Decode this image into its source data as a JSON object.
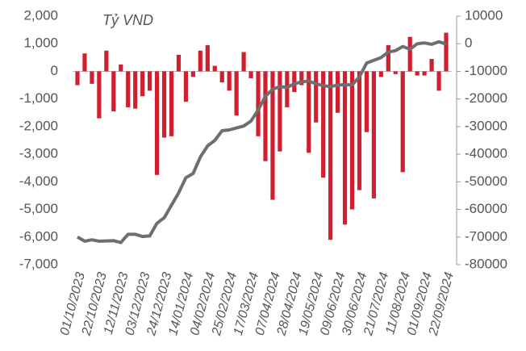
{
  "chart_data": {
    "type": "bar_line",
    "annotation": "Tỷ VND",
    "categories": [
      "01/10/2023",
      null,
      null,
      "22/10/2023",
      null,
      null,
      "12/11/2023",
      null,
      null,
      "03/12/2023",
      null,
      null,
      "24/12/2023",
      null,
      null,
      "14/01/2024",
      null,
      null,
      "04/02/2024",
      null,
      null,
      "25/02/2024",
      null,
      null,
      "17/03/2024",
      null,
      null,
      "07/04/2024",
      null,
      null,
      "28/04/2024",
      null,
      null,
      "19/05/2024",
      null,
      null,
      "09/06/2024",
      null,
      null,
      "30/06/2024",
      null,
      null,
      "21/07/2024",
      null,
      null,
      "11/08/2024",
      null,
      null,
      "01/09/2024",
      null,
      null,
      "22/09/2024"
    ],
    "series": [
      {
        "color": "#d01f2e",
        "axis": "y",
        "values": [
          -500,
          650,
          -450,
          -1700,
          750,
          -1450,
          250,
          -1300,
          -1350,
          -900,
          -700,
          -3750,
          -2400,
          -2350,
          600,
          -1100,
          -200,
          750,
          950,
          200,
          -400,
          -700,
          -1600,
          700,
          -250,
          -2350,
          -3250,
          -4650,
          -2900,
          -1300,
          -750,
          -500,
          -2950,
          -1850,
          -3850,
          -6100,
          -1500,
          -5550,
          -5000,
          -4300,
          -2200,
          -4600,
          -200,
          950,
          -100,
          -3650,
          1250,
          -150,
          -150,
          450,
          -700,
          1400
        ]
      },
      {
        "color": "#6e6e6e",
        "axis": "y2",
        "values": [
          -70000,
          -71500,
          -71000,
          -71500,
          -71400,
          -71300,
          -72000,
          -69000,
          -69000,
          -69800,
          -69600,
          -65000,
          -63000,
          -58500,
          -54000,
          -48500,
          -47000,
          -41000,
          -37000,
          -35000,
          -31500,
          -31200,
          -30500,
          -29800,
          -28000,
          -24000,
          -19000,
          -16500,
          -15500,
          -15800,
          -14500,
          -13800,
          -13500,
          -14500,
          -15200,
          -15500,
          -15000,
          -14800,
          -14900,
          -12000,
          -7000,
          -6000,
          -5000,
          -3000,
          -2500,
          -1000,
          -2000,
          0,
          300,
          -200,
          700,
          -100
        ]
      }
    ],
    "ylim": [
      -7000,
      2000
    ],
    "yticks": [
      {
        "value": -7000,
        "label": "-7,000"
      },
      {
        "value": -6000,
        "label": "-6,000"
      },
      {
        "value": -5000,
        "label": "-5,000"
      },
      {
        "value": -4000,
        "label": "-4,000"
      },
      {
        "value": -3000,
        "label": "-3,000"
      },
      {
        "value": -2000,
        "label": "-2,000"
      },
      {
        "value": -1000,
        "label": "-1,000"
      },
      0,
      {
        "value": 1000,
        "label": "1,000"
      },
      {
        "value": 2000,
        "label": "2,000"
      }
    ],
    "y2lim": [
      -80000,
      10000
    ],
    "y2ticks": [
      -80000,
      -70000,
      -60000,
      -50000,
      -40000,
      -30000,
      -20000,
      -10000,
      0,
      10000
    ]
  }
}
